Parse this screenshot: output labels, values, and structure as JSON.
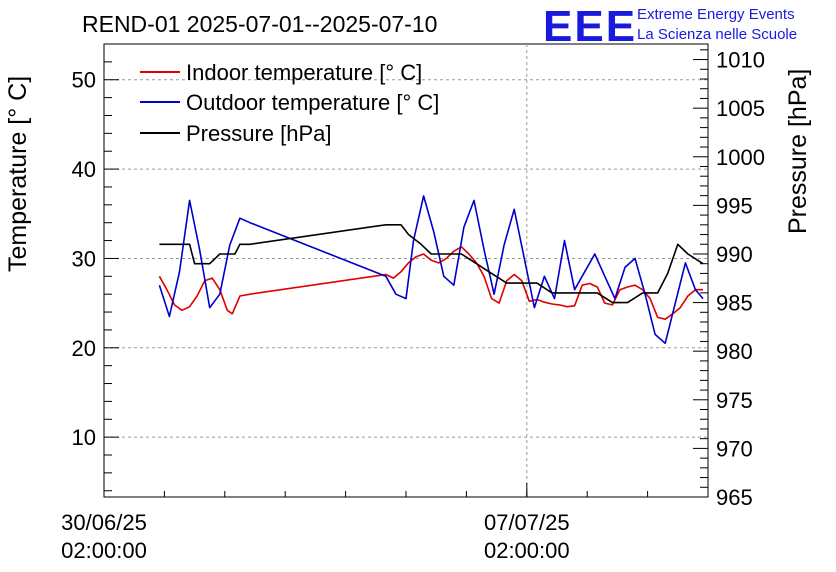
{
  "header": {
    "title": "REND-01 2025-07-01--2025-07-10",
    "logo_text": "EEE",
    "brand_line1": "Extreme Energy Events",
    "brand_line2": "La Scienza nelle Scuole"
  },
  "colors": {
    "indoor": "#e00000",
    "outdoor": "#0000cc",
    "pressure": "#000000",
    "logo": "#1a1adf",
    "grid": "#9a9a9a"
  },
  "chart_data": {
    "type": "line",
    "x_axis": {
      "type": "time",
      "range": [
        "2025-06-30 02:00:00",
        "2025-07-10 02:00:00"
      ],
      "ticks": [
        {
          "value": "2025-06-30 02:00:00",
          "label_date": "30/06/25",
          "label_time": "02:00:00"
        },
        {
          "value": "2025-07-07 02:00:00",
          "label_date": "07/07/25",
          "label_time": "02:00:00"
        }
      ]
    },
    "y_left": {
      "label": "Temperature [° C]",
      "range": [
        3.3,
        54
      ],
      "ticks": [
        10,
        20,
        30,
        40,
        50
      ]
    },
    "y_right": {
      "label": "Pressure [hPa]",
      "range": [
        965,
        1011.6
      ],
      "ticks": [
        965,
        970,
        975,
        980,
        985,
        990,
        995,
        1000,
        1005,
        1010
      ]
    },
    "grid": true,
    "legend": {
      "placement": "top-left",
      "entries": [
        "Indoor temperature [° C]",
        "Outdoor temperature [° C]",
        "Pressure [hPa]"
      ]
    },
    "series": [
      {
        "name": "Indoor temperature [° C]",
        "axis": "left",
        "x": [
          "2025-07-01 00:00",
          "2025-07-01 03:00",
          "2025-07-01 06:00",
          "2025-07-01 09:00",
          "2025-07-01 12:00",
          "2025-07-01 15:00",
          "2025-07-01 18:00",
          "2025-07-01 21:00",
          "2025-07-02 00:00",
          "2025-07-02 03:00",
          "2025-07-02 05:00",
          "2025-07-02 08:00",
          "2025-07-02 12:00",
          "2025-07-04 18:00",
          "2025-07-04 21:00",
          "2025-07-05 00:00",
          "2025-07-05 03:00",
          "2025-07-05 06:00",
          "2025-07-05 09:00",
          "2025-07-05 12:00",
          "2025-07-05 15:00",
          "2025-07-05 18:00",
          "2025-07-05 21:00",
          "2025-07-06 00:00",
          "2025-07-06 03:00",
          "2025-07-06 06:00",
          "2025-07-06 09:00",
          "2025-07-06 12:00",
          "2025-07-06 15:00",
          "2025-07-06 18:00",
          "2025-07-06 21:00",
          "2025-07-07 00:00",
          "2025-07-07 03:00",
          "2025-07-07 06:00",
          "2025-07-07 09:00",
          "2025-07-07 12:00",
          "2025-07-07 15:00",
          "2025-07-07 18:00",
          "2025-07-07 21:00",
          "2025-07-08 00:00",
          "2025-07-08 03:00",
          "2025-07-08 06:00",
          "2025-07-08 09:00",
          "2025-07-08 12:00",
          "2025-07-08 15:00",
          "2025-07-08 18:00",
          "2025-07-08 21:00",
          "2025-07-09 00:00",
          "2025-07-09 03:00",
          "2025-07-09 06:00",
          "2025-07-09 09:00",
          "2025-07-09 12:00",
          "2025-07-09 15:00",
          "2025-07-09 18:00",
          "2025-07-09 21:00",
          "2025-07-10 00:00"
        ],
        "y": [
          28.0,
          26.5,
          24.8,
          24.2,
          24.6,
          25.8,
          27.5,
          27.8,
          26.5,
          24.2,
          23.8,
          25.8,
          26.0,
          28.2,
          27.8,
          28.5,
          29.5,
          30.2,
          30.5,
          29.8,
          29.5,
          30.0,
          30.8,
          31.3,
          30.5,
          29.5,
          28.0,
          25.5,
          25.0,
          27.5,
          28.2,
          27.5,
          25.2,
          25.4,
          25.1,
          24.9,
          24.8,
          24.6,
          24.7,
          27.0,
          27.2,
          26.8,
          25.0,
          24.8,
          26.5,
          26.8,
          27.0,
          26.5,
          25.5,
          23.4,
          23.2,
          23.8,
          24.5,
          25.8,
          26.5,
          26.5
        ]
      },
      {
        "name": "Outdoor temperature [° C]",
        "axis": "left",
        "x": [
          "2025-07-01 00:00",
          "2025-07-01 04:00",
          "2025-07-01 08:00",
          "2025-07-01 12:00",
          "2025-07-01 16:00",
          "2025-07-01 20:00",
          "2025-07-02 00:00",
          "2025-07-02 04:00",
          "2025-07-02 08:00",
          "2025-07-02 12:00",
          "2025-07-04 18:00",
          "2025-07-04 22:00",
          "2025-07-05 02:00",
          "2025-07-05 05:00",
          "2025-07-05 09:00",
          "2025-07-05 13:00",
          "2025-07-05 17:00",
          "2025-07-05 21:00",
          "2025-07-06 01:00",
          "2025-07-06 05:00",
          "2025-07-06 09:00",
          "2025-07-06 13:00",
          "2025-07-06 17:00",
          "2025-07-06 21:00",
          "2025-07-07 01:00",
          "2025-07-07 05:00",
          "2025-07-07 09:00",
          "2025-07-07 13:00",
          "2025-07-07 17:00",
          "2025-07-07 21:00",
          "2025-07-08 01:00",
          "2025-07-08 05:00",
          "2025-07-08 09:00",
          "2025-07-08 13:00",
          "2025-07-08 17:00",
          "2025-07-08 21:00",
          "2025-07-09 01:00",
          "2025-07-09 05:00",
          "2025-07-09 09:00",
          "2025-07-09 13:00",
          "2025-07-09 17:00",
          "2025-07-09 21:00",
          "2025-07-10 00:00"
        ],
        "y": [
          27.0,
          23.5,
          28.5,
          36.5,
          31.0,
          24.5,
          26.0,
          31.5,
          34.5,
          34.0,
          28.0,
          26.0,
          25.5,
          32.0,
          37.0,
          33.0,
          28.0,
          27.0,
          33.5,
          36.5,
          31.0,
          26.0,
          31.5,
          35.5,
          30.0,
          24.5,
          28.0,
          25.5,
          32.0,
          26.5,
          28.5,
          30.5,
          28.0,
          25.5,
          29.0,
          30.0,
          26.0,
          21.5,
          20.5,
          25.0,
          29.5,
          26.5,
          25.5
        ]
      },
      {
        "name": "Pressure [hPa]",
        "axis": "right",
        "x": [
          "2025-07-01 00:00",
          "2025-07-01 12:00",
          "2025-07-01 14:00",
          "2025-07-01 20:00",
          "2025-07-02 00:00",
          "2025-07-02 06:00",
          "2025-07-02 08:00",
          "2025-07-02 12:00",
          "2025-07-04 18:00",
          "2025-07-05 00:00",
          "2025-07-05 03:00",
          "2025-07-05 08:00",
          "2025-07-05 12:00",
          "2025-07-05 18:00",
          "2025-07-06 00:00",
          "2025-07-06 06:00",
          "2025-07-06 12:00",
          "2025-07-06 18:00",
          "2025-07-07 00:00",
          "2025-07-07 06:00",
          "2025-07-07 12:00",
          "2025-07-07 18:00",
          "2025-07-08 00:00",
          "2025-07-08 06:00",
          "2025-07-08 12:00",
          "2025-07-08 18:00",
          "2025-07-09 00:00",
          "2025-07-09 06:00",
          "2025-07-09 10:00",
          "2025-07-09 14:00",
          "2025-07-09 18:00",
          "2025-07-10 00:00"
        ],
        "y": [
          991,
          991,
          989,
          989,
          990,
          990,
          991,
          991,
          993,
          993,
          992,
          991,
          990,
          990,
          990,
          989,
          988,
          987,
          987,
          987,
          986,
          986,
          986,
          986,
          985,
          985,
          986,
          986,
          988,
          991,
          990,
          989
        ]
      }
    ]
  }
}
